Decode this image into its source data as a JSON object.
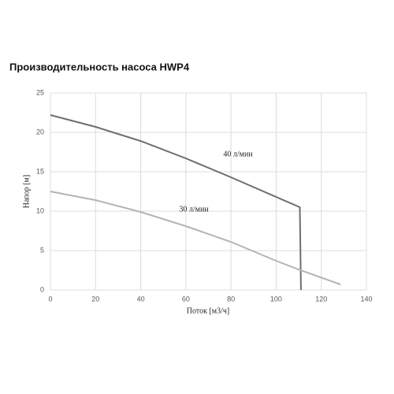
{
  "chart_data": {
    "type": "line",
    "title": "Производительность насоса HWP4",
    "xlabel": "Поток [м3/ч]",
    "ylabel": "Напор [м]",
    "series": [
      {
        "name": "40 л/мин",
        "color": "#6e6e6e",
        "x": [
          0,
          20,
          40,
          60,
          80,
          110.5,
          111
        ],
        "values": [
          22.2,
          20.7,
          18.9,
          16.7,
          14.3,
          10.5,
          0
        ]
      },
      {
        "name": "30 л/мин",
        "color": "#b4b4b4",
        "x": [
          0,
          20,
          40,
          60,
          80,
          100,
          110,
          128.5
        ],
        "values": [
          12.5,
          11.4,
          9.9,
          8.1,
          6.1,
          3.7,
          2.6,
          0.7
        ]
      }
    ],
    "xlim": [
      0,
      140
    ],
    "xticks": [
      0,
      20,
      40,
      60,
      80,
      100,
      120,
      140
    ],
    "ylim": [
      0,
      25
    ],
    "yticks": [
      0,
      5,
      10,
      15,
      20,
      25
    ],
    "grid": true
  }
}
